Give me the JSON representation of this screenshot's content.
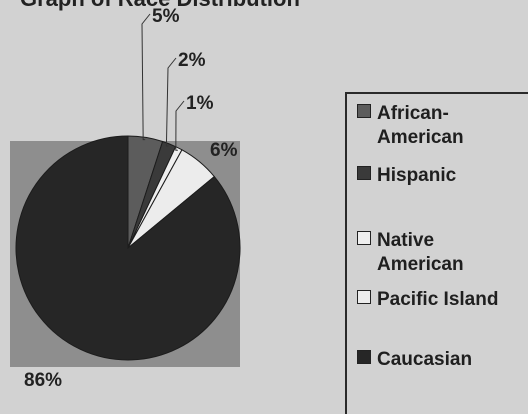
{
  "title": "Graph of Race Distribution",
  "chart_data": {
    "type": "pie",
    "title": "Graph of Race Distribution",
    "slices": [
      {
        "label": "African-American",
        "label_lines": [
          "African-",
          "American"
        ],
        "value": 5,
        "value_label": "5%",
        "color": "#5c5c5c"
      },
      {
        "label": "Hispanic",
        "label_lines": [
          "Hispanic"
        ],
        "value": 2,
        "value_label": "2%",
        "color": "#3a3a3a"
      },
      {
        "label": "Native American",
        "label_lines": [
          "Native",
          "American"
        ],
        "value": 1,
        "value_label": "1%",
        "color": "#efefef"
      },
      {
        "label": "Pacific Island",
        "label_lines": [
          "Pacific Island"
        ],
        "value": 6,
        "value_label": "6%",
        "color": "#ececec"
      },
      {
        "label": "Caucasian",
        "label_lines": [
          "Caucasian"
        ],
        "value": 86,
        "value_label": "86%",
        "color": "#262626"
      }
    ],
    "legend_position": "right"
  }
}
